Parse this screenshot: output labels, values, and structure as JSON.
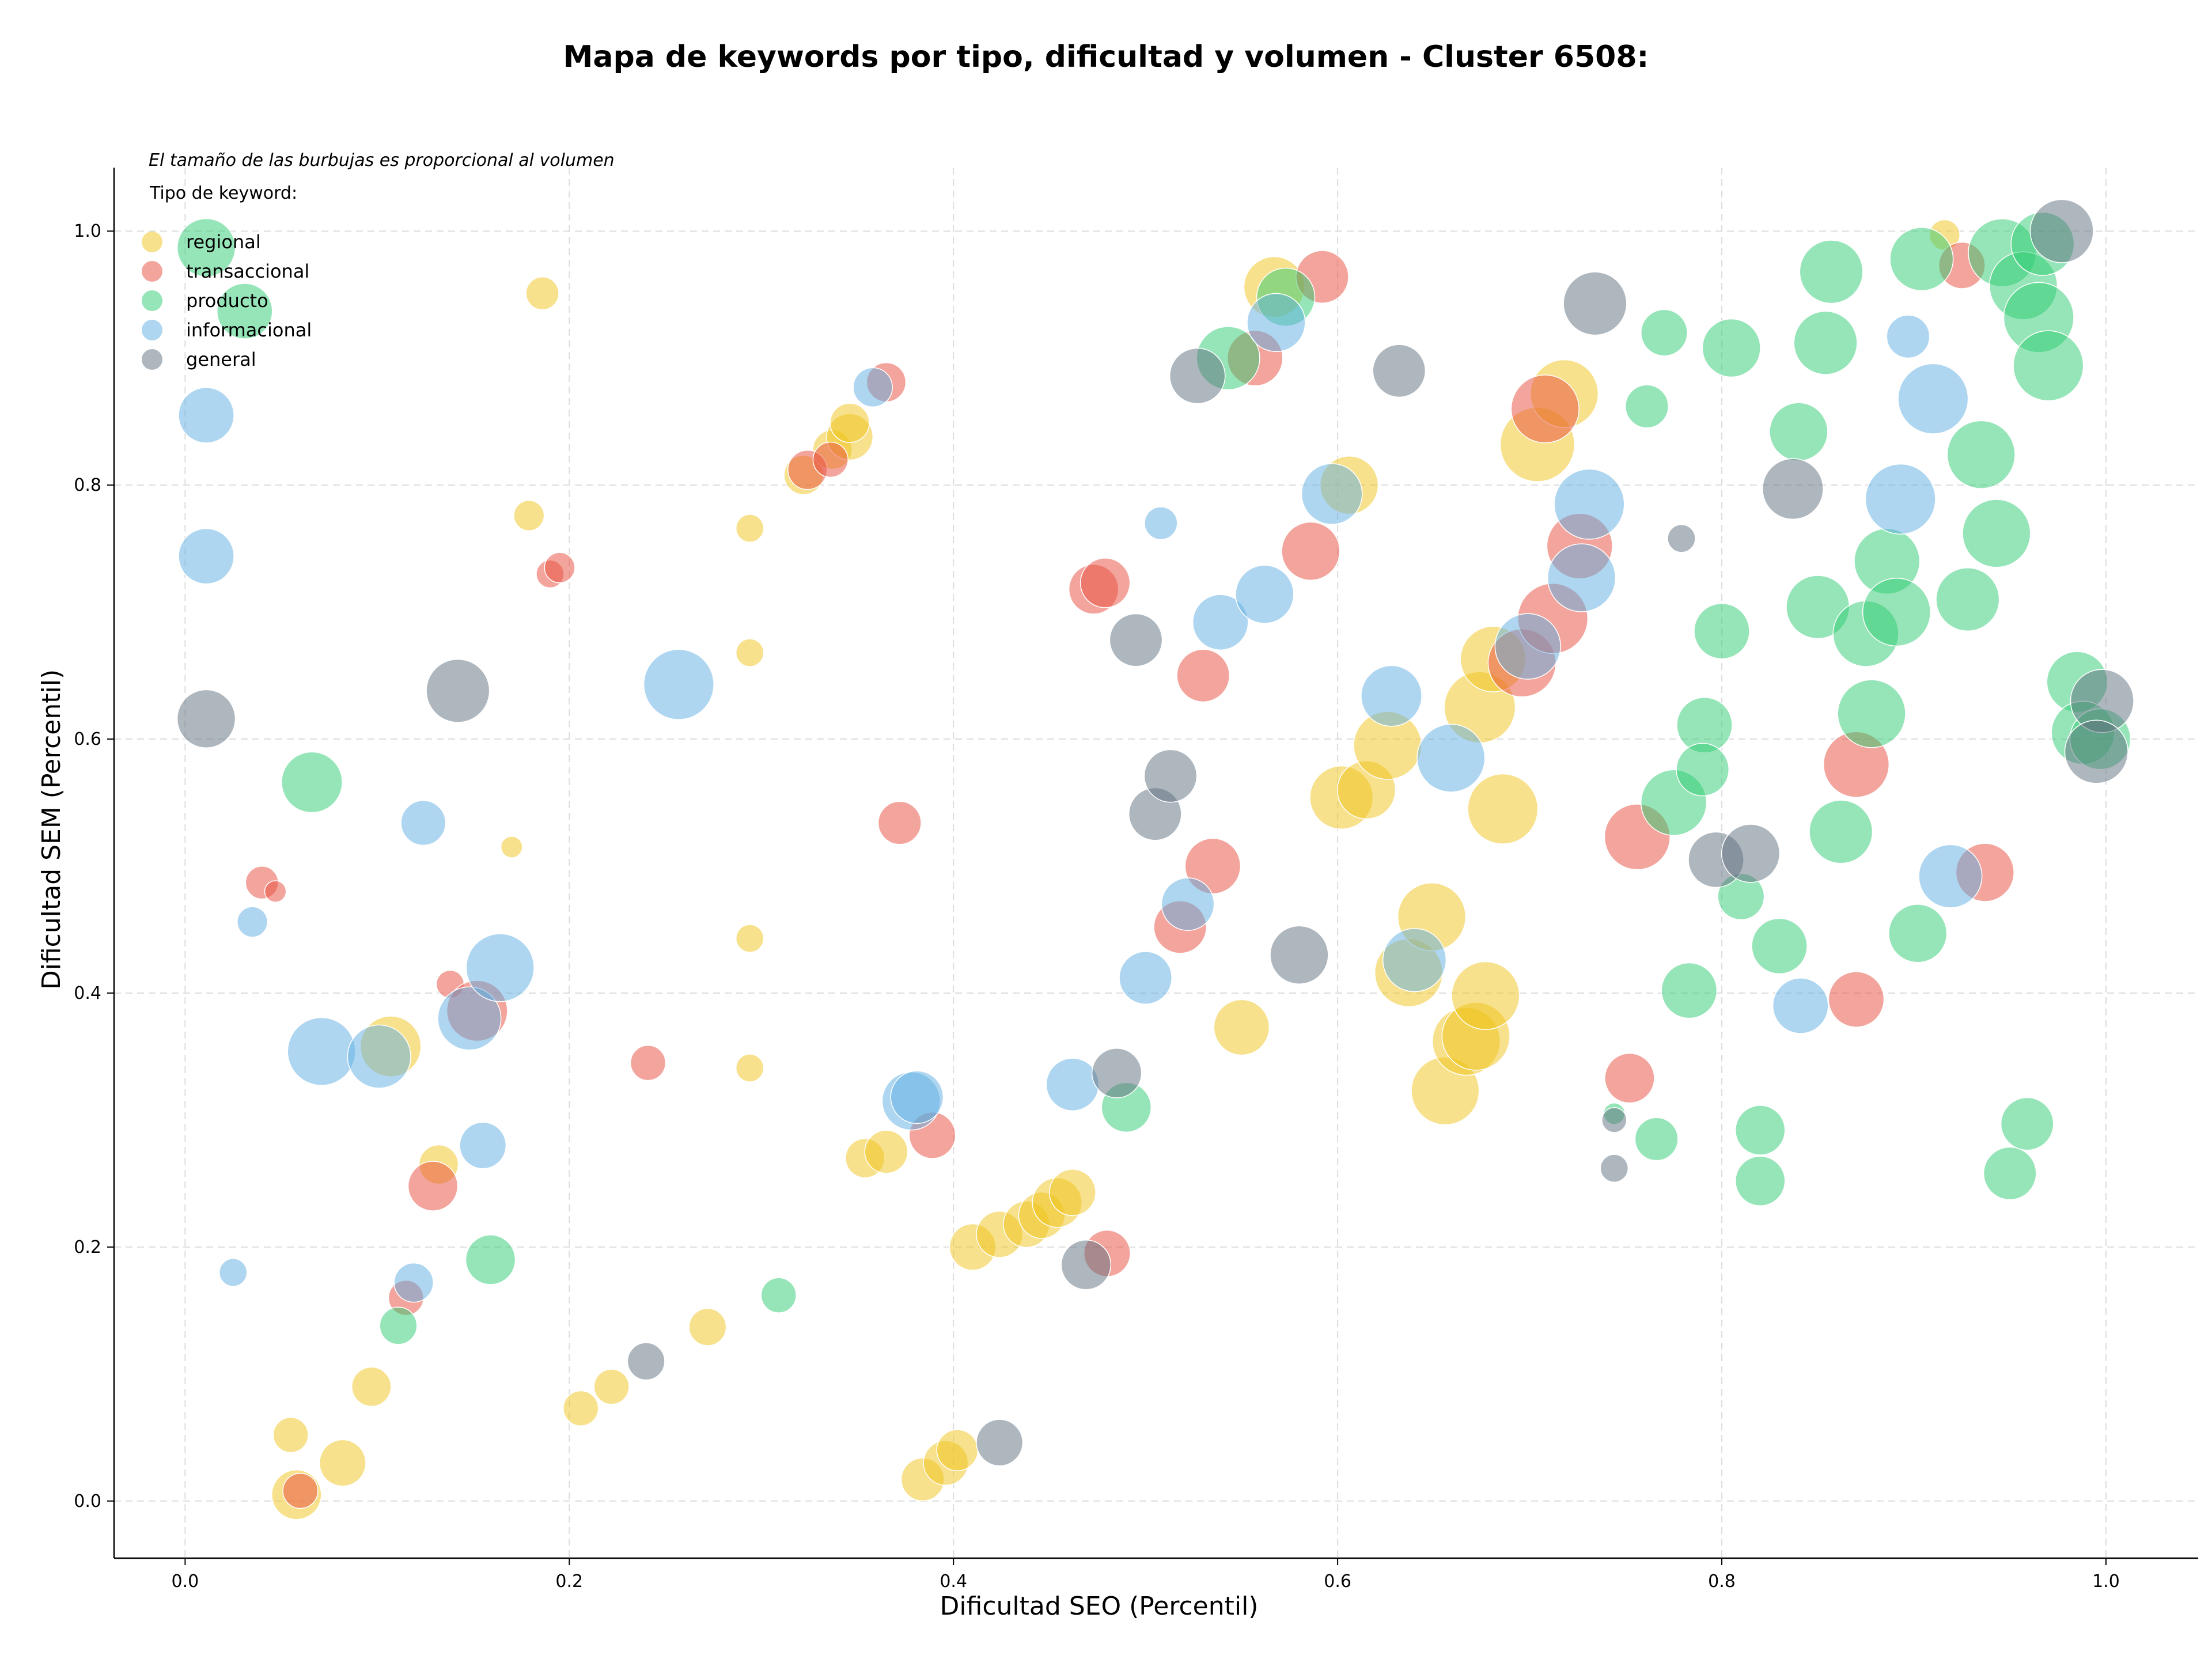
{
  "chart_data": {
    "type": "scatter",
    "title": "Mapa de keywords por tipo, dificultad y volumen - Cluster 6508:",
    "xlabel": "Dificultad SEO (Percentil)",
    "ylabel": "Dificultad SEM (Percentil)",
    "note": "El tamaño de las burbujas es proporcional al volumen",
    "legend_title": "Tipo de keyword:",
    "legend_position": "top-left",
    "grid": true,
    "xlim": [
      -0.037,
      1.048
    ],
    "ylim": [
      -0.045,
      1.05
    ],
    "xticks": [
      0.0,
      0.2,
      0.4,
      0.6,
      0.8,
      1.0
    ],
    "yticks": [
      0.0,
      0.2,
      0.4,
      0.6,
      0.8,
      1.0
    ],
    "xtick_labels": [
      "0.0",
      "0.2",
      "0.4",
      "0.6",
      "0.8",
      "1.0"
    ],
    "ytick_labels": [
      "0.0",
      "0.2",
      "0.4",
      "0.6",
      "0.8",
      "1.0"
    ],
    "series": [
      {
        "name": "regional",
        "color": "#f0c419",
        "points": [
          [
            0.055,
            0.052,
            0.8
          ],
          [
            0.058,
            0.005,
            1.6
          ],
          [
            0.082,
            0.03,
            1.4
          ],
          [
            0.097,
            0.09,
            1.0
          ],
          [
            0.107,
            0.358,
            2.4
          ],
          [
            0.132,
            0.265,
            1.0
          ],
          [
            0.17,
            0.515,
            0.3
          ],
          [
            0.179,
            0.776,
            0.6
          ],
          [
            0.186,
            0.951,
            0.7
          ],
          [
            0.294,
            0.766,
            0.5
          ],
          [
            0.294,
            0.668,
            0.5
          ],
          [
            0.294,
            0.443,
            0.5
          ],
          [
            0.294,
            0.341,
            0.5
          ],
          [
            0.322,
            0.808,
            1.0
          ],
          [
            0.337,
            0.828,
            1.0
          ],
          [
            0.346,
            0.838,
            1.4
          ],
          [
            0.346,
            0.849,
            1.0
          ],
          [
            0.354,
            0.27,
            1.0
          ],
          [
            0.365,
            0.275,
            1.2
          ],
          [
            0.384,
            0.017,
            1.2
          ],
          [
            0.396,
            0.03,
            1.3
          ],
          [
            0.402,
            0.04,
            1.1
          ],
          [
            0.41,
            0.2,
            1.4
          ],
          [
            0.424,
            0.21,
            1.4
          ],
          [
            0.438,
            0.218,
            1.4
          ],
          [
            0.446,
            0.225,
            1.4
          ],
          [
            0.454,
            0.235,
            1.6
          ],
          [
            0.462,
            0.243,
            1.4
          ],
          [
            0.206,
            0.073,
            0.8
          ],
          [
            0.222,
            0.09,
            0.8
          ],
          [
            0.272,
            0.137,
            0.9
          ],
          [
            0.55,
            0.373,
            2.0
          ],
          [
            0.567,
            0.956,
            2.4
          ],
          [
            0.606,
            0.8,
            2.2
          ],
          [
            0.602,
            0.554,
            2.6
          ],
          [
            0.615,
            0.56,
            2.2
          ],
          [
            0.626,
            0.595,
            3.0
          ],
          [
            0.637,
            0.416,
            3.0
          ],
          [
            0.649,
            0.46,
            3.0
          ],
          [
            0.656,
            0.323,
            3.0
          ],
          [
            0.667,
            0.362,
            3.0
          ],
          [
            0.672,
            0.366,
            3.0
          ],
          [
            0.674,
            0.625,
            3.3
          ],
          [
            0.681,
            0.663,
            2.8
          ],
          [
            0.677,
            0.398,
            3.0
          ],
          [
            0.686,
            0.545,
            3.2
          ],
          [
            0.704,
            0.832,
            3.6
          ],
          [
            0.718,
            0.872,
            3.0
          ],
          [
            0.916,
            0.997,
            0.6
          ]
        ]
      },
      {
        "name": "transaccional",
        "color": "#e74c3c",
        "points": [
          [
            0.04,
            0.487,
            0.7
          ],
          [
            0.06,
            0.008,
            0.8
          ],
          [
            0.115,
            0.16,
            0.8
          ],
          [
            0.129,
            0.248,
            1.6
          ],
          [
            0.138,
            0.407,
            0.5
          ],
          [
            0.152,
            0.386,
            2.4
          ],
          [
            0.19,
            0.73,
            0.5
          ],
          [
            0.195,
            0.735,
            0.6
          ],
          [
            0.241,
            0.345,
            0.8
          ],
          [
            0.324,
            0.812,
            1.0
          ],
          [
            0.336,
            0.82,
            0.8
          ],
          [
            0.365,
            0.881,
            1.0
          ],
          [
            0.372,
            0.534,
            1.2
          ],
          [
            0.389,
            0.288,
            1.4
          ],
          [
            0.473,
            0.718,
            1.6
          ],
          [
            0.479,
            0.723,
            1.6
          ],
          [
            0.48,
            0.195,
            1.4
          ],
          [
            0.518,
            0.452,
            1.8
          ],
          [
            0.53,
            0.65,
            1.8
          ],
          [
            0.535,
            0.5,
            2.0
          ],
          [
            0.557,
            0.9,
            2.0
          ],
          [
            0.586,
            0.748,
            2.2
          ],
          [
            0.592,
            0.964,
            1.8
          ],
          [
            0.696,
            0.66,
            3.0
          ],
          [
            0.708,
            0.86,
            3.0
          ],
          [
            0.712,
            0.695,
            3.2
          ],
          [
            0.726,
            0.752,
            2.8
          ],
          [
            0.752,
            0.333,
            1.6
          ],
          [
            0.756,
            0.523,
            2.8
          ],
          [
            0.87,
            0.395,
            2.0
          ],
          [
            0.87,
            0.58,
            2.8
          ],
          [
            0.925,
            0.973,
            1.4
          ],
          [
            0.937,
            0.495,
            2.2
          ],
          [
            0.047,
            0.48,
            0.3
          ]
        ]
      },
      {
        "name": "producto",
        "color": "#2ecc71",
        "points": [
          [
            0.011,
            0.987,
            2.2
          ],
          [
            0.031,
            0.937,
            2.0
          ],
          [
            0.066,
            0.566,
            2.4
          ],
          [
            0.111,
            0.138,
            0.9
          ],
          [
            0.159,
            0.19,
            1.6
          ],
          [
            0.309,
            0.162,
            0.8
          ],
          [
            0.49,
            0.31,
            1.6
          ],
          [
            0.543,
            0.9,
            2.6
          ],
          [
            0.573,
            0.948,
            2.2
          ],
          [
            0.744,
            0.305,
            0.3
          ],
          [
            0.761,
            0.862,
            1.2
          ],
          [
            0.766,
            0.285,
            1.2
          ],
          [
            0.77,
            0.92,
            1.4
          ],
          [
            0.775,
            0.55,
            2.8
          ],
          [
            0.783,
            0.402,
            2.0
          ],
          [
            0.791,
            0.611,
            2.0
          ],
          [
            0.79,
            0.576,
            1.8
          ],
          [
            0.8,
            0.685,
            2.0
          ],
          [
            0.805,
            0.908,
            2.2
          ],
          [
            0.81,
            0.476,
            1.4
          ],
          [
            0.82,
            0.292,
            1.6
          ],
          [
            0.82,
            0.252,
            1.6
          ],
          [
            0.83,
            0.437,
            2.0
          ],
          [
            0.84,
            0.842,
            2.2
          ],
          [
            0.85,
            0.704,
            2.6
          ],
          [
            0.854,
            0.912,
            2.6
          ],
          [
            0.857,
            0.968,
            2.6
          ],
          [
            0.862,
            0.527,
            2.6
          ],
          [
            0.878,
            0.62,
            3.0
          ],
          [
            0.875,
            0.683,
            2.8
          ],
          [
            0.886,
            0.74,
            2.8
          ],
          [
            0.891,
            0.7,
            3.0
          ],
          [
            0.902,
            0.447,
            2.2
          ],
          [
            0.904,
            0.978,
            2.6
          ],
          [
            0.928,
            0.71,
            2.6
          ],
          [
            0.935,
            0.824,
            3.0
          ],
          [
            0.943,
            0.762,
            3.0
          ],
          [
            0.946,
            0.983,
            3.0
          ],
          [
            0.95,
            0.258,
            1.8
          ],
          [
            0.959,
            0.297,
            1.8
          ],
          [
            0.957,
            0.957,
            3.0
          ],
          [
            0.965,
            0.932,
            3.2
          ],
          [
            0.97,
            0.894,
            3.2
          ],
          [
            0.967,
            0.99,
            2.6
          ],
          [
            0.985,
            0.645,
            2.4
          ],
          [
            0.988,
            0.605,
            2.6
          ],
          [
            0.997,
            0.6,
            2.4
          ]
        ]
      },
      {
        "name": "informacional",
        "color": "#5dade2",
        "points": [
          [
            0.011,
            0.855,
            2.0
          ],
          [
            0.011,
            0.744,
            2.0
          ],
          [
            0.025,
            0.18,
            0.5
          ],
          [
            0.035,
            0.456,
            0.6
          ],
          [
            0.071,
            0.354,
            3.0
          ],
          [
            0.101,
            0.35,
            2.6
          ],
          [
            0.119,
            0.172,
            1.0
          ],
          [
            0.124,
            0.534,
            1.3
          ],
          [
            0.148,
            0.38,
            2.6
          ],
          [
            0.155,
            0.28,
            1.4
          ],
          [
            0.164,
            0.42,
            3.0
          ],
          [
            0.257,
            0.643,
            3.2
          ],
          [
            0.358,
            0.877,
            1.0
          ],
          [
            0.378,
            0.315,
            2.2
          ],
          [
            0.381,
            0.318,
            1.8
          ],
          [
            0.462,
            0.328,
            1.8
          ],
          [
            0.5,
            0.412,
            1.8
          ],
          [
            0.508,
            0.77,
            0.7
          ],
          [
            0.522,
            0.47,
            1.8
          ],
          [
            0.539,
            0.692,
            2.0
          ],
          [
            0.562,
            0.714,
            2.2
          ],
          [
            0.568,
            0.928,
            2.2
          ],
          [
            0.597,
            0.793,
            2.4
          ],
          [
            0.628,
            0.634,
            2.4
          ],
          [
            0.64,
            0.426,
            2.6
          ],
          [
            0.659,
            0.585,
            3.0
          ],
          [
            0.699,
            0.673,
            2.8
          ],
          [
            0.727,
            0.727,
            3.0
          ],
          [
            0.731,
            0.785,
            3.2
          ],
          [
            0.841,
            0.39,
            2.0
          ],
          [
            0.897,
            0.917,
            1.2
          ],
          [
            0.893,
            0.789,
            3.2
          ],
          [
            0.91,
            0.868,
            3.2
          ],
          [
            0.919,
            0.492,
            2.6
          ]
        ]
      },
      {
        "name": "general",
        "color": "#5d6d7e",
        "points": [
          [
            0.011,
            0.616,
            2.2
          ],
          [
            0.142,
            0.638,
            2.6
          ],
          [
            0.24,
            0.11,
            0.9
          ],
          [
            0.424,
            0.046,
            1.4
          ],
          [
            0.469,
            0.186,
            1.6
          ],
          [
            0.485,
            0.337,
            1.6
          ],
          [
            0.495,
            0.678,
            1.8
          ],
          [
            0.505,
            0.541,
            1.8
          ],
          [
            0.513,
            0.571,
            1.8
          ],
          [
            0.527,
            0.886,
            2.0
          ],
          [
            0.58,
            0.43,
            2.2
          ],
          [
            0.632,
            0.89,
            1.8
          ],
          [
            0.734,
            0.943,
            2.6
          ],
          [
            0.779,
            0.758,
            0.5
          ],
          [
            0.744,
            0.262,
            0.5
          ],
          [
            0.744,
            0.3,
            0.4
          ],
          [
            0.797,
            0.505,
            2.0
          ],
          [
            0.815,
            0.51,
            2.2
          ],
          [
            0.837,
            0.797,
            2.4
          ],
          [
            0.977,
            1.0,
            2.6
          ],
          [
            0.998,
            0.63,
            2.6
          ],
          [
            0.995,
            0.59,
            2.6
          ]
        ]
      }
    ]
  }
}
